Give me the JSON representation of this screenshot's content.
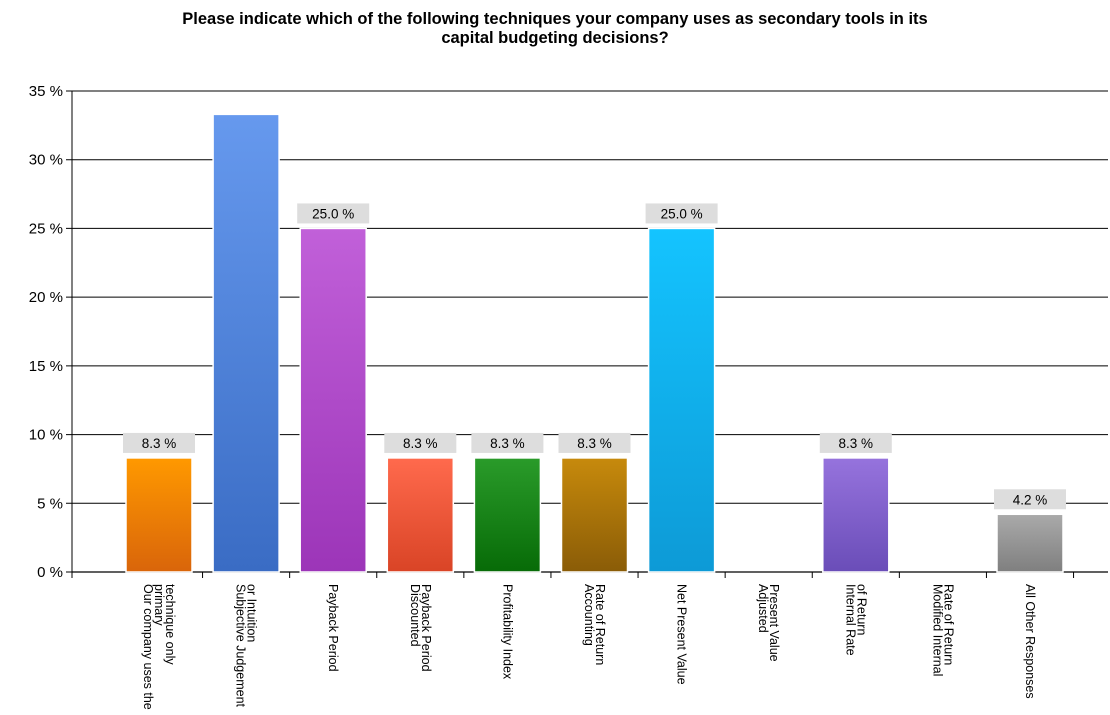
{
  "chart_data": {
    "type": "bar",
    "title_lines": [
      "Please indicate which of the following techniques your company uses as secondary tools in its",
      "capital budgeting decisions?"
    ],
    "xlabel": "",
    "ylabel": "",
    "ylim": [
      0,
      35
    ],
    "y_ticks": [
      0,
      5,
      10,
      15,
      20,
      25,
      30,
      35
    ],
    "y_tick_labels": [
      "0 %",
      "5 %",
      "10 %",
      "15 %",
      "20 %",
      "25 %",
      "30 %",
      "35 %"
    ],
    "grid": true,
    "legend": "none",
    "categories": [
      [
        "Our company uses the",
        "primary",
        "technique only"
      ],
      [
        "Subjective Judgement",
        "or Intuition"
      ],
      [
        "Payback Period"
      ],
      [
        "Discounted",
        "Payback Period"
      ],
      [
        "Profitability Index"
      ],
      [
        "Accounting",
        "Rate of Return"
      ],
      [
        "Net Present Value"
      ],
      [
        "Adjusted",
        "Present Value"
      ],
      [
        "Internal Rate",
        "of Return"
      ],
      [
        "Modified Internal",
        "Rate of Return"
      ],
      [
        "All Other Responses"
      ]
    ],
    "values": [
      8.3,
      33.3,
      25.0,
      8.3,
      8.3,
      8.3,
      25.0,
      0,
      8.3,
      0,
      4.2
    ],
    "data_labels": [
      "8.3 %",
      "",
      "25.0 %",
      "8.3 %",
      "8.3 %",
      "8.3 %",
      "25.0 %",
      "",
      "8.3 %",
      "",
      "4.2 %"
    ],
    "colors": [
      [
        "#ff9900",
        "#d9650a"
      ],
      [
        "#6699ee",
        "#3a6cc4"
      ],
      [
        "#c160d9",
        "#9c35b8"
      ],
      [
        "#ff6a4d",
        "#d94426"
      ],
      [
        "#2a9b2a",
        "#076b07"
      ],
      [
        "#c78a0c",
        "#8a5c07"
      ],
      [
        "#14c4ff",
        "#0d9ad6"
      ],
      [
        "#cccccc",
        "#999999"
      ],
      [
        "#9673dd",
        "#6a4db8"
      ],
      [
        "#cccccc",
        "#999999"
      ],
      [
        "#aaaaaa",
        "#7f7f7f"
      ]
    ]
  }
}
